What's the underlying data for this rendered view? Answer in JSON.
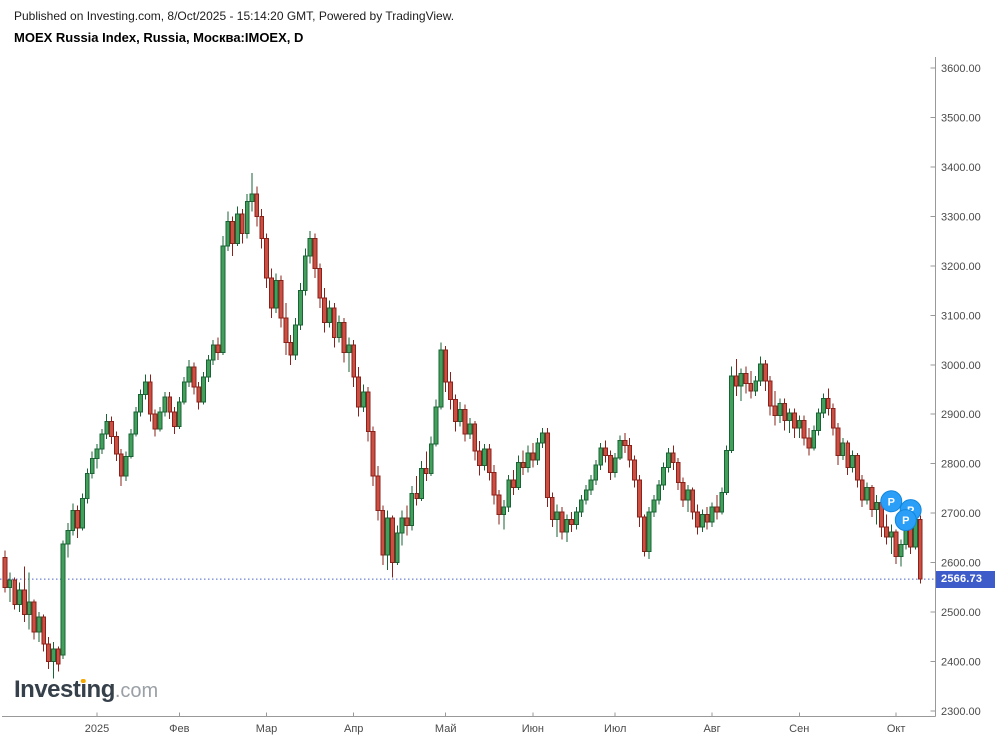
{
  "header": {
    "published_line": "Published on Investing.com, 8/Oct/2025 - 15:14:20 GMT, Powered by TradingView.",
    "instrument_line": "MOEX Russia Index, Russia, Москва:IMOEX, D"
  },
  "logo": {
    "brand": "Investing",
    "tld": ".com",
    "dot_color": "#f7a800"
  },
  "price_axis": {
    "labels": [
      "3600.00",
      "3500.00",
      "3400.00",
      "3300.00",
      "3200.00",
      "3100.00",
      "3000.00",
      "2900.00",
      "2800.00",
      "2700.00",
      "2600.00",
      "2500.00",
      "2400.00",
      "2300.00"
    ],
    "max": 3600,
    "min": 2300,
    "step": 100,
    "last_price_label": "2566.73",
    "last_price_value": 2566.73
  },
  "time_axis": {
    "labels": [
      "2025",
      "Фев",
      "Мар",
      "Апр",
      "Май",
      "Июн",
      "Июл",
      "Авг",
      "Сен",
      "Окт"
    ],
    "tick_candle_index": [
      19,
      36,
      54,
      72,
      91,
      109,
      126,
      146,
      164,
      184
    ]
  },
  "markers": [
    {
      "label": "P",
      "index": 183,
      "price": 2724
    },
    {
      "label": "P",
      "index": 187,
      "price": 2706
    },
    {
      "label": "P",
      "index": 186,
      "price": 2686
    }
  ],
  "colors": {
    "up_fill": "#42a05c",
    "up_stroke": "#1a6334",
    "down_fill": "#cc4f44",
    "down_stroke": "#8a211a",
    "axis": "#999999",
    "axis_text": "#4a4a4a",
    "last_price_line": "#4a63c8",
    "badge_bg": "#3d5bc9",
    "marker_fill": "#2b9ff7",
    "marker_stroke": "#1186dd"
  },
  "chart_data": {
    "type": "candlestick",
    "title": "MOEX Russia Index, Russia, Москва:IMOEX, D",
    "symbol": "IMOEX",
    "interval": "D",
    "ylim": [
      2300,
      3600
    ],
    "grid": false,
    "x_tick_labels": [
      "2025",
      "Фев",
      "Мар",
      "Апр",
      "Май",
      "Июн",
      "Июл",
      "Авг",
      "Сен",
      "Окт"
    ],
    "last_close": 2566.73,
    "ohlc": [
      [
        2610,
        2625,
        2540,
        2550
      ],
      [
        2550,
        2580,
        2520,
        2565
      ],
      [
        2565,
        2570,
        2505,
        2515
      ],
      [
        2515,
        2560,
        2500,
        2545
      ],
      [
        2545,
        2592,
        2480,
        2495
      ],
      [
        2495,
        2580,
        2465,
        2520
      ],
      [
        2520,
        2525,
        2445,
        2460
      ],
      [
        2460,
        2500,
        2440,
        2490
      ],
      [
        2490,
        2495,
        2420,
        2435
      ],
      [
        2435,
        2450,
        2385,
        2400
      ],
      [
        2400,
        2440,
        2366,
        2425
      ],
      [
        2425,
        2430,
        2380,
        2395
      ],
      [
        2413,
        2645,
        2405,
        2638
      ],
      [
        2638,
        2680,
        2610,
        2665
      ],
      [
        2665,
        2720,
        2655,
        2705
      ],
      [
        2705,
        2715,
        2650,
        2670
      ],
      [
        2670,
        2740,
        2665,
        2730
      ],
      [
        2730,
        2790,
        2720,
        2780
      ],
      [
        2780,
        2825,
        2770,
        2810
      ],
      [
        2810,
        2840,
        2790,
        2830
      ],
      [
        2830,
        2870,
        2820,
        2860
      ],
      [
        2860,
        2900,
        2850,
        2885
      ],
      [
        2885,
        2895,
        2840,
        2855
      ],
      [
        2855,
        2865,
        2805,
        2820
      ],
      [
        2820,
        2830,
        2755,
        2775
      ],
      [
        2775,
        2825,
        2765,
        2815
      ],
      [
        2815,
        2870,
        2810,
        2860
      ],
      [
        2860,
        2915,
        2855,
        2905
      ],
      [
        2905,
        2950,
        2895,
        2940
      ],
      [
        2940,
        2980,
        2930,
        2965
      ],
      [
        2965,
        2980,
        2885,
        2900
      ],
      [
        2900,
        2910,
        2855,
        2870
      ],
      [
        2870,
        2915,
        2865,
        2905
      ],
      [
        2905,
        2945,
        2895,
        2935
      ],
      [
        2935,
        2945,
        2890,
        2905
      ],
      [
        2905,
        2915,
        2860,
        2875
      ],
      [
        2875,
        2935,
        2870,
        2925
      ],
      [
        2925,
        2975,
        2920,
        2965
      ],
      [
        2965,
        3010,
        2955,
        2995
      ],
      [
        2995,
        3005,
        2940,
        2955
      ],
      [
        2955,
        2965,
        2910,
        2925
      ],
      [
        2925,
        2985,
        2920,
        2975
      ],
      [
        2975,
        3020,
        2965,
        3010
      ],
      [
        3010,
        3050,
        3000,
        3040
      ],
      [
        3040,
        3055,
        3010,
        3025
      ],
      [
        3025,
        3260,
        3020,
        3240
      ],
      [
        3240,
        3310,
        3230,
        3290
      ],
      [
        3290,
        3300,
        3220,
        3245
      ],
      [
        3245,
        3320,
        3240,
        3305
      ],
      [
        3305,
        3315,
        3245,
        3265
      ],
      [
        3265,
        3345,
        3255,
        3330
      ],
      [
        3330,
        3388,
        3310,
        3345
      ],
      [
        3345,
        3360,
        3280,
        3300
      ],
      [
        3300,
        3315,
        3235,
        3255
      ],
      [
        3255,
        3265,
        3155,
        3175
      ],
      [
        3175,
        3195,
        3095,
        3115
      ],
      [
        3115,
        3185,
        3105,
        3170
      ],
      [
        3170,
        3180,
        3075,
        3095
      ],
      [
        3095,
        3125,
        3020,
        3045
      ],
      [
        3045,
        3060,
        3000,
        3020
      ],
      [
        3020,
        3095,
        3010,
        3080
      ],
      [
        3080,
        3165,
        3070,
        3150
      ],
      [
        3150,
        3235,
        3140,
        3220
      ],
      [
        3220,
        3270,
        3205,
        3255
      ],
      [
        3255,
        3265,
        3175,
        3195
      ],
      [
        3195,
        3205,
        3115,
        3135
      ],
      [
        3135,
        3155,
        3065,
        3085
      ],
      [
        3085,
        3130,
        3075,
        3115
      ],
      [
        3115,
        3125,
        3035,
        3055
      ],
      [
        3055,
        3100,
        3045,
        3085
      ],
      [
        3085,
        3095,
        3005,
        3025
      ],
      [
        3025,
        3055,
        2985,
        3040
      ],
      [
        3040,
        3050,
        2955,
        2975
      ],
      [
        2975,
        2995,
        2895,
        2915
      ],
      [
        2915,
        2960,
        2905,
        2945
      ],
      [
        2945,
        2955,
        2845,
        2865
      ],
      [
        2865,
        2875,
        2755,
        2775
      ],
      [
        2775,
        2795,
        2685,
        2705
      ],
      [
        2705,
        2715,
        2595,
        2615
      ],
      [
        2615,
        2705,
        2585,
        2690
      ],
      [
        2690,
        2695,
        2570,
        2600
      ],
      [
        2600,
        2675,
        2595,
        2660
      ],
      [
        2660,
        2705,
        2635,
        2690
      ],
      [
        2690,
        2715,
        2655,
        2675
      ],
      [
        2675,
        2755,
        2665,
        2740
      ],
      [
        2740,
        2775,
        2715,
        2730
      ],
      [
        2730,
        2805,
        2725,
        2790
      ],
      [
        2790,
        2825,
        2765,
        2780
      ],
      [
        2780,
        2855,
        2775,
        2840
      ],
      [
        2840,
        2930,
        2835,
        2915
      ],
      [
        2915,
        3045,
        2910,
        3030
      ],
      [
        3030,
        3038,
        2945,
        2965
      ],
      [
        2965,
        2985,
        2910,
        2930
      ],
      [
        2930,
        2940,
        2865,
        2885
      ],
      [
        2885,
        2925,
        2875,
        2910
      ],
      [
        2910,
        2920,
        2845,
        2860
      ],
      [
        2860,
        2892,
        2850,
        2880
      ],
      [
        2880,
        2886,
        2806,
        2826
      ],
      [
        2826,
        2846,
        2776,
        2796
      ],
      [
        2796,
        2840,
        2786,
        2830
      ],
      [
        2830,
        2840,
        2766,
        2782
      ],
      [
        2782,
        2797,
        2717,
        2737
      ],
      [
        2737,
        2747,
        2677,
        2697
      ],
      [
        2697,
        2727,
        2667,
        2712
      ],
      [
        2712,
        2777,
        2702,
        2767
      ],
      [
        2767,
        2787,
        2737,
        2752
      ],
      [
        2752,
        2817,
        2747,
        2802
      ],
      [
        2802,
        2827,
        2777,
        2792
      ],
      [
        2792,
        2837,
        2782,
        2822
      ],
      [
        2822,
        2842,
        2792,
        2807
      ],
      [
        2807,
        2852,
        2797,
        2842
      ],
      [
        2842,
        2872,
        2832,
        2862
      ],
      [
        2862,
        2872,
        2712,
        2732
      ],
      [
        2732,
        2742,
        2672,
        2687
      ],
      [
        2687,
        2717,
        2652,
        2702
      ],
      [
        2702,
        2712,
        2647,
        2662
      ],
      [
        2662,
        2697,
        2642,
        2687
      ],
      [
        2687,
        2702,
        2662,
        2677
      ],
      [
        2677,
        2712,
        2667,
        2702
      ],
      [
        2702,
        2737,
        2692,
        2727
      ],
      [
        2727,
        2757,
        2717,
        2747
      ],
      [
        2747,
        2777,
        2737,
        2767
      ],
      [
        2767,
        2807,
        2757,
        2797
      ],
      [
        2797,
        2842,
        2787,
        2832
      ],
      [
        2832,
        2847,
        2802,
        2817
      ],
      [
        2817,
        2827,
        2767,
        2782
      ],
      [
        2782,
        2822,
        2772,
        2812
      ],
      [
        2812,
        2857,
        2807,
        2847
      ],
      [
        2847,
        2862,
        2822,
        2837
      ],
      [
        2837,
        2852,
        2792,
        2807
      ],
      [
        2807,
        2817,
        2752,
        2767
      ],
      [
        2767,
        2777,
        2672,
        2692
      ],
      [
        2692,
        2697,
        2612,
        2622
      ],
      [
        2622,
        2712,
        2607,
        2702
      ],
      [
        2702,
        2737,
        2692,
        2727
      ],
      [
        2727,
        2767,
        2717,
        2757
      ],
      [
        2757,
        2802,
        2747,
        2792
      ],
      [
        2792,
        2832,
        2782,
        2822
      ],
      [
        2822,
        2837,
        2787,
        2802
      ],
      [
        2802,
        2812,
        2747,
        2762
      ],
      [
        2762,
        2772,
        2712,
        2727
      ],
      [
        2727,
        2757,
        2702,
        2747
      ],
      [
        2747,
        2752,
        2687,
        2702
      ],
      [
        2702,
        2717,
        2657,
        2672
      ],
      [
        2672,
        2707,
        2662,
        2697
      ],
      [
        2697,
        2712,
        2667,
        2682
      ],
      [
        2682,
        2722,
        2672,
        2712
      ],
      [
        2712,
        2737,
        2687,
        2702
      ],
      [
        2702,
        2752,
        2697,
        2742
      ],
      [
        2742,
        2837,
        2737,
        2827
      ],
      [
        2827,
        2997,
        2822,
        2977
      ],
      [
        2977,
        3012,
        2937,
        2957
      ],
      [
        2957,
        2992,
        2927,
        2982
      ],
      [
        2982,
        2997,
        2942,
        2962
      ],
      [
        2962,
        2987,
        2932,
        2947
      ],
      [
        2947,
        2977,
        2937,
        2967
      ],
      [
        2967,
        3017,
        2957,
        3002
      ],
      [
        3002,
        3010,
        2947,
        2967
      ],
      [
        2967,
        2977,
        2897,
        2917
      ],
      [
        2917,
        2947,
        2877,
        2897
      ],
      [
        2897,
        2932,
        2882,
        2922
      ],
      [
        2922,
        2932,
        2867,
        2887
      ],
      [
        2887,
        2912,
        2862,
        2902
      ],
      [
        2902,
        2912,
        2852,
        2872
      ],
      [
        2872,
        2897,
        2852,
        2887
      ],
      [
        2887,
        2897,
        2837,
        2852
      ],
      [
        2852,
        2872,
        2817,
        2832
      ],
      [
        2832,
        2877,
        2827,
        2867
      ],
      [
        2867,
        2912,
        2857,
        2902
      ],
      [
        2902,
        2942,
        2892,
        2932
      ],
      [
        2932,
        2952,
        2897,
        2912
      ],
      [
        2912,
        2922,
        2857,
        2872
      ],
      [
        2872,
        2882,
        2797,
        2817
      ],
      [
        2817,
        2852,
        2807,
        2842
      ],
      [
        2842,
        2847,
        2777,
        2792
      ],
      [
        2792,
        2827,
        2782,
        2817
      ],
      [
        2817,
        2822,
        2752,
        2767
      ],
      [
        2767,
        2777,
        2712,
        2727
      ],
      [
        2727,
        2762,
        2717,
        2752
      ],
      [
        2752,
        2757,
        2692,
        2707
      ],
      [
        2707,
        2737,
        2677,
        2722
      ],
      [
        2722,
        2727,
        2652,
        2672
      ],
      [
        2672,
        2697,
        2637,
        2652
      ],
      [
        2652,
        2677,
        2617,
        2662
      ],
      [
        2662,
        2667,
        2597,
        2612
      ],
      [
        2612,
        2647,
        2592,
        2637
      ],
      [
        2637,
        2687,
        2627,
        2677
      ],
      [
        2677,
        2682,
        2617,
        2632
      ],
      [
        2632,
        2697,
        2627,
        2687
      ],
      [
        2687,
        2695,
        2558,
        2566.73
      ]
    ]
  }
}
